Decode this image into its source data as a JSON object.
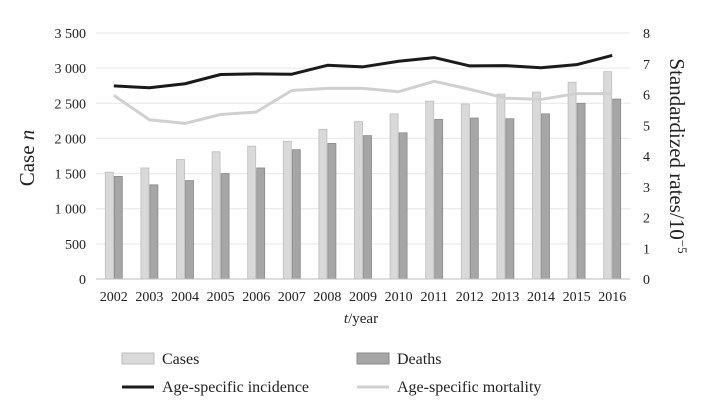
{
  "chart_data": {
    "type": "bar",
    "categories": [
      "2002",
      "2003",
      "2004",
      "2005",
      "2006",
      "2007",
      "2008",
      "2009",
      "2010",
      "2011",
      "2012",
      "2013",
      "2014",
      "2015",
      "2016"
    ],
    "series": [
      {
        "name": "Cases",
        "type": "bar",
        "axis": "left",
        "color": "#d9d9d9",
        "values": [
          1520,
          1580,
          1700,
          1810,
          1890,
          1960,
          2130,
          2240,
          2350,
          2530,
          2490,
          2630,
          2660,
          2800,
          2950
        ]
      },
      {
        "name": "Deaths",
        "type": "bar",
        "axis": "left",
        "color": "#a6a6a6",
        "values": [
          1460,
          1340,
          1400,
          1500,
          1580,
          1840,
          1930,
          2040,
          2080,
          2270,
          2290,
          2280,
          2350,
          2500,
          2560
        ]
      },
      {
        "name": "Age-specific incidence",
        "type": "line",
        "axis": "right",
        "color": "#1a1a1a",
        "values": [
          6.28,
          6.22,
          6.35,
          6.65,
          6.67,
          6.66,
          6.95,
          6.9,
          7.08,
          7.2,
          6.93,
          6.94,
          6.87,
          6.97,
          7.27
        ]
      },
      {
        "name": "Age-specific mortality",
        "type": "line",
        "axis": "right",
        "color": "#d0d0d0",
        "values": [
          5.97,
          5.18,
          5.06,
          5.35,
          5.43,
          6.13,
          6.2,
          6.2,
          6.09,
          6.43,
          6.17,
          5.88,
          5.84,
          6.03,
          6.03
        ]
      }
    ],
    "xlabel_prefix": "t",
    "xlabel_suffix": "/year",
    "ylabel_left_main": "Case ",
    "ylabel_left_italic": "n",
    "ylabel_right_main": "Standardized rates/10",
    "ylabel_right_sup": "−5",
    "y_left_ticks": [
      "0",
      "500",
      "1 000",
      "1 500",
      "2 000",
      "2 500",
      "3 000",
      "3 500"
    ],
    "y_right_ticks": [
      "0",
      "1",
      "2",
      "3",
      "4",
      "5",
      "6",
      "7",
      "8"
    ],
    "ylim_left": [
      0,
      3500
    ],
    "ylim_right": [
      0,
      8
    ],
    "grid": "horizontal",
    "legend_position": "bottom"
  }
}
